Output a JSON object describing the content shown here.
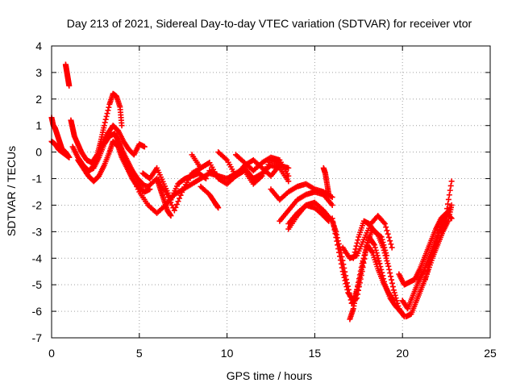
{
  "chart_data": {
    "type": "scatter",
    "title": "Day 213 of 2021, Sidereal Day-to-day VTEC variation (SDTVAR) for receiver vtor",
    "xlabel": "GPS time / hours",
    "ylabel": "SDTVAR / TECUs",
    "xlim": [
      0,
      25
    ],
    "ylim": [
      -7,
      4
    ],
    "xticks": [
      "0",
      "5",
      "10",
      "15",
      "20",
      "25"
    ],
    "yticks": [
      "4",
      "3",
      "2",
      "1",
      "0",
      "-1",
      "-2",
      "-3",
      "-4",
      "-5",
      "-6",
      "-7"
    ],
    "grid": true,
    "marker": "+",
    "color": "#ff0000",
    "series": [
      {
        "name": "track-1",
        "x": [
          0.0,
          0.1,
          0.2,
          0.3,
          0.4,
          0.5,
          0.6,
          0.8,
          1.0
        ],
        "y": [
          1.3,
          1.0,
          0.9,
          0.7,
          0.5,
          0.3,
          0.1,
          0.0,
          -0.2
        ]
      },
      {
        "name": "track-2",
        "x": [
          0.0,
          0.2,
          0.4,
          0.6,
          0.8,
          1.0
        ],
        "y": [
          0.4,
          0.3,
          0.1,
          0.0,
          -0.1,
          -0.2
        ]
      },
      {
        "name": "track-3",
        "x": [
          0.8,
          0.85,
          0.9,
          0.95,
          1.0
        ],
        "y": [
          3.3,
          3.1,
          2.9,
          2.7,
          2.5
        ]
      },
      {
        "name": "track-4",
        "x": [
          1.1,
          1.2,
          1.3,
          1.5,
          1.7,
          2.0,
          2.3,
          2.6,
          2.8,
          3.0,
          3.3,
          3.5,
          3.7,
          3.9,
          4.0
        ],
        "y": [
          1.2,
          0.9,
          0.6,
          0.3,
          0.0,
          -0.3,
          -0.4,
          -0.1,
          0.4,
          1.0,
          1.8,
          2.2,
          2.1,
          1.7,
          1.0
        ]
      },
      {
        "name": "track-5",
        "x": [
          1.2,
          1.5,
          1.8,
          2.1,
          2.4,
          2.7,
          3.0,
          3.3,
          3.6,
          3.8,
          4.0,
          4.3,
          4.6,
          4.9,
          5.2
        ],
        "y": [
          0.2,
          -0.2,
          -0.5,
          -0.7,
          -0.6,
          -0.2,
          0.3,
          0.6,
          0.7,
          0.4,
          0.1,
          -0.3,
          -0.7,
          -1.0,
          -1.2
        ]
      },
      {
        "name": "track-6",
        "x": [
          1.5,
          1.8,
          2.1,
          2.4,
          2.7,
          3.0,
          3.3,
          3.5,
          3.8,
          4.0,
          4.3,
          4.6,
          4.9,
          5.3,
          5.6
        ],
        "y": [
          -0.3,
          -0.6,
          -0.9,
          -1.1,
          -0.9,
          -0.5,
          0.0,
          0.4,
          0.2,
          -0.2,
          -0.6,
          -1.0,
          -1.3,
          -1.5,
          -1.4
        ]
      },
      {
        "name": "track-7",
        "x": [
          2.0,
          2.3,
          2.6,
          2.9,
          3.2,
          3.5,
          3.8,
          4.1,
          4.4,
          4.7,
          5.0,
          5.3
        ],
        "y": [
          -0.8,
          -0.6,
          -0.2,
          0.3,
          0.7,
          1.0,
          0.8,
          0.4,
          0.1,
          -0.1,
          0.3,
          0.2
        ]
      },
      {
        "name": "track-8",
        "x": [
          4.0,
          4.5,
          5.0,
          5.5,
          6.0,
          6.5,
          7.0,
          7.5,
          8.0,
          8.5,
          9.0,
          9.5
        ],
        "y": [
          0.0,
          -0.8,
          -1.5,
          -2.0,
          -2.3,
          -2.0,
          -1.6,
          -1.4,
          -1.2,
          -1.0,
          -0.8,
          -0.9
        ]
      },
      {
        "name": "track-9",
        "x": [
          4.5,
          5.0,
          5.5,
          6.0,
          6.5,
          7.0,
          7.5,
          8.0,
          8.5,
          9.0
        ],
        "y": [
          -0.6,
          -1.2,
          -1.3,
          -1.0,
          -1.5,
          -2.2,
          -1.4,
          -0.8,
          -0.6,
          -0.4
        ]
      },
      {
        "name": "track-10",
        "x": [
          5.2,
          5.6,
          6.0,
          6.4,
          6.8,
          7.2,
          7.6,
          8.0,
          8.4,
          8.8
        ],
        "y": [
          -0.8,
          -1.0,
          -0.6,
          -1.2,
          -1.8,
          -1.2,
          -1.0,
          -0.9,
          -0.8,
          -1.0
        ]
      },
      {
        "name": "track-11",
        "x": [
          6.0,
          6.2,
          6.4,
          6.6,
          6.8
        ],
        "y": [
          -1.0,
          -1.4,
          -1.8,
          -2.2,
          -2.4
        ]
      },
      {
        "name": "track-12",
        "x": [
          8.0,
          8.5,
          9.0,
          9.5,
          10.0,
          10.5,
          11.0,
          11.5,
          12.0,
          12.5,
          13.0,
          13.5
        ],
        "y": [
          -0.1,
          -0.6,
          -0.4,
          -1.0,
          -1.2,
          -0.9,
          -0.5,
          -0.3,
          -0.6,
          -0.9,
          -0.5,
          -0.6
        ]
      },
      {
        "name": "track-13",
        "x": [
          8.5,
          9.0,
          9.3,
          9.5
        ],
        "y": [
          -1.3,
          -1.6,
          -1.9,
          -2.1
        ]
      },
      {
        "name": "track-14",
        "x": [
          9.5,
          10.0,
          10.5,
          11.0,
          11.5,
          12.0,
          12.5,
          13.0
        ],
        "y": [
          0.0,
          -0.3,
          -0.9,
          -0.7,
          -1.2,
          -0.9,
          -0.3,
          -0.4
        ]
      },
      {
        "name": "track-15",
        "x": [
          9.0,
          9.5,
          10.0,
          10.5,
          11.0,
          11.5,
          12.0,
          12.5,
          13.0,
          13.5
        ],
        "y": [
          -0.7,
          -0.9,
          -1.0,
          -0.8,
          -0.6,
          -1.0,
          -0.8,
          -0.5,
          -0.6,
          -1.1
        ]
      },
      {
        "name": "track-16",
        "x": [
          10.5,
          11.0,
          11.5,
          12.0,
          12.5,
          13.0,
          13.5
        ],
        "y": [
          -0.1,
          -0.4,
          -0.7,
          -0.4,
          -0.2,
          -0.3,
          -0.9
        ]
      },
      {
        "name": "track-17",
        "x": [
          12.5,
          13.0,
          13.5,
          14.0,
          14.5,
          15.0,
          15.5,
          16.0
        ],
        "y": [
          -1.4,
          -1.8,
          -1.5,
          -1.3,
          -1.2,
          -1.4,
          -1.5,
          -1.7
        ]
      },
      {
        "name": "track-18",
        "x": [
          13.0,
          13.5,
          14.0,
          14.5,
          15.0,
          15.5,
          16.0
        ],
        "y": [
          -2.6,
          -2.2,
          -1.8,
          -1.6,
          -1.5,
          -1.6,
          -2.0
        ]
      },
      {
        "name": "track-19",
        "x": [
          13.5,
          14.0,
          14.5,
          15.0,
          15.5,
          16.0,
          16.2
        ],
        "y": [
          -2.9,
          -2.4,
          -2.0,
          -1.9,
          -2.2,
          -2.6,
          -3.0
        ]
      },
      {
        "name": "track-20",
        "x": [
          13.5,
          14.0,
          14.5,
          15.0,
          15.5,
          15.8
        ],
        "y": [
          -2.7,
          -2.3,
          -2.0,
          -2.1,
          -2.4,
          -2.6
        ]
      },
      {
        "name": "track-21",
        "x": [
          15.5,
          15.6,
          15.7,
          15.8
        ],
        "y": [
          -0.6,
          -0.8,
          -1.2,
          -1.6
        ]
      },
      {
        "name": "track-22",
        "x": [
          16.0,
          16.3,
          16.6,
          16.9,
          17.2,
          17.5,
          17.8,
          18.1,
          18.4,
          18.7,
          19.0,
          19.3,
          19.6,
          20.0
        ],
        "y": [
          -2.5,
          -3.5,
          -4.5,
          -5.3,
          -5.6,
          -5.0,
          -4.0,
          -3.2,
          -3.5,
          -4.2,
          -5.0,
          -5.5,
          -5.8,
          -6.1
        ]
      },
      {
        "name": "track-23",
        "x": [
          16.2,
          16.5,
          16.8,
          17.1,
          17.4,
          17.7,
          18.0,
          18.3,
          18.6,
          18.9,
          19.2,
          19.5,
          19.8,
          20.1
        ],
        "y": [
          -3.0,
          -3.8,
          -4.8,
          -5.7,
          -5.5,
          -4.5,
          -3.4,
          -2.9,
          -3.1,
          -3.6,
          -4.3,
          -5.2,
          -5.9,
          -6.2
        ]
      },
      {
        "name": "track-24",
        "x": [
          17.0,
          17.2,
          17.4,
          17.7,
          18.0,
          18.3,
          18.6,
          18.9,
          19.2,
          19.5
        ],
        "y": [
          -6.3,
          -5.9,
          -5.2,
          -4.2,
          -3.5,
          -3.8,
          -4.4,
          -4.9,
          -5.3,
          -5.6
        ]
      },
      {
        "name": "track-25",
        "x": [
          16.6,
          17.0,
          17.4,
          17.8,
          18.2,
          18.6,
          19.0,
          19.4
        ],
        "y": [
          -3.6,
          -4.0,
          -3.9,
          -3.3,
          -2.7,
          -2.4,
          -2.7,
          -3.6
        ]
      },
      {
        "name": "track-26",
        "x": [
          17.2,
          17.5,
          17.8,
          18.1,
          18.4,
          18.8,
          19.1
        ],
        "y": [
          -4.0,
          -3.2,
          -2.6,
          -2.7,
          -3.0,
          -3.2,
          -3.9
        ]
      },
      {
        "name": "track-27",
        "x": [
          19.8,
          20.1,
          20.4,
          20.7,
          21.0,
          21.3,
          21.6,
          21.9,
          22.2,
          22.5,
          22.8
        ],
        "y": [
          -4.6,
          -5.0,
          -4.9,
          -4.8,
          -4.4,
          -3.9,
          -3.4,
          -2.9,
          -2.5,
          -2.3,
          -1.1
        ]
      },
      {
        "name": "track-28",
        "x": [
          20.0,
          20.3,
          20.6,
          20.9,
          21.2,
          21.5,
          21.8,
          22.1,
          22.4,
          22.7
        ],
        "y": [
          -5.6,
          -5.9,
          -5.4,
          -4.9,
          -4.5,
          -4.0,
          -3.5,
          -3.0,
          -2.7,
          -2.1
        ]
      },
      {
        "name": "track-29",
        "x": [
          20.2,
          20.5,
          20.8,
          21.1,
          21.4,
          21.7,
          22.0,
          22.3,
          22.6,
          22.8
        ],
        "y": [
          -6.2,
          -6.1,
          -5.6,
          -5.1,
          -4.6,
          -4.0,
          -3.5,
          -3.0,
          -2.6,
          -2.0
        ]
      },
      {
        "name": "track-30",
        "x": [
          21.3,
          21.6,
          21.9,
          22.2,
          22.5,
          22.8
        ],
        "y": [
          -4.8,
          -4.0,
          -3.5,
          -2.7,
          -2.3,
          -2.5
        ]
      }
    ]
  }
}
